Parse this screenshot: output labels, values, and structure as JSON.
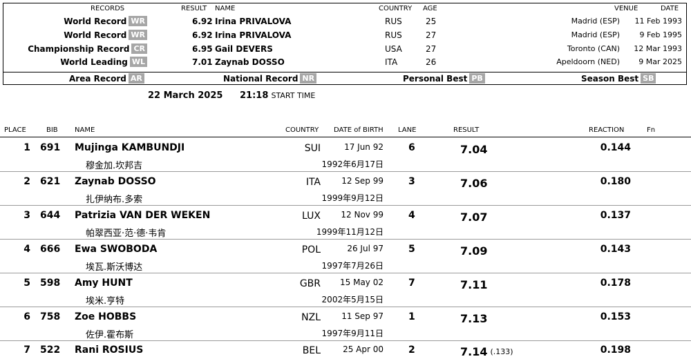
{
  "records": {
    "headers": {
      "records": "RECORDS",
      "result": "RESULT",
      "name": "NAME",
      "country": "COUNTRY",
      "age": "AGE",
      "venue": "VENUE",
      "date": "DATE"
    },
    "rows": [
      {
        "label": "World Record",
        "code": "WR",
        "result": "6.92",
        "name": "Irina PRIVALOVA",
        "country": "RUS",
        "age": "25",
        "venue": "Madrid (ESP)",
        "date": "11 Feb 1993"
      },
      {
        "label": "World Record",
        "code": "WR",
        "result": "6.92",
        "name": "Irina PRIVALOVA",
        "country": "RUS",
        "age": "27",
        "venue": "Madrid (ESP)",
        "date": "9 Feb 1995"
      },
      {
        "label": "Championship Record",
        "code": "CR",
        "result": "6.95",
        "name": "Gail DEVERS",
        "country": "USA",
        "age": "27",
        "venue": "Toronto (CAN)",
        "date": "12 Mar 1993"
      },
      {
        "label": "World Leading",
        "code": "WL",
        "result": "7.01",
        "name": "Zaynab DOSSO",
        "country": "ITA",
        "age": "26",
        "venue": "Apeldoorn (NED)",
        "date": "9 Mar 2025"
      }
    ],
    "legend": [
      {
        "label": "Area Record",
        "code": "AR"
      },
      {
        "label": "National Record",
        "code": "NR"
      },
      {
        "label": "Personal Best",
        "code": "PB"
      },
      {
        "label": "Season Best",
        "code": "SB"
      }
    ]
  },
  "event": {
    "date": "22 March  2025",
    "time": "21:18",
    "start_time_label": "START TIME"
  },
  "columns": {
    "place": "PLACE",
    "bib": "BIB",
    "name": "NAME",
    "country": "COUNTRY",
    "dob": "DATE of BIRTH",
    "lane": "LANE",
    "result": "RESULT",
    "reaction": "REACTION",
    "fn": "Fn"
  },
  "athletes": [
    {
      "place": "1",
      "bib": "691",
      "name": "Mujinga  KAMBUNDJI",
      "name_cn": "穆金加.坎邦吉",
      "country": "SUI",
      "dob": "17 Jun 92",
      "dob_cn": "1992年6月17日",
      "lane": "6",
      "result": "7.04",
      "result_note": "",
      "reaction": "0.144"
    },
    {
      "place": "2",
      "bib": "621",
      "name": "Zaynab  DOSSO",
      "name_cn": "扎伊纳布.多索",
      "country": "ITA",
      "dob": "12 Sep 99",
      "dob_cn": "1999年9月12日",
      "lane": "3",
      "result": "7.06",
      "result_note": "",
      "reaction": "0.180"
    },
    {
      "place": "3",
      "bib": "644",
      "name": "Patrizia  VAN DER WEKEN",
      "name_cn": "帕翠西亚·范·德·韦肯",
      "country": "LUX",
      "dob": "12 Nov 99",
      "dob_cn": "1999年11月12日",
      "lane": "4",
      "result": "7.07",
      "result_note": "",
      "reaction": "0.137"
    },
    {
      "place": "4",
      "bib": "666",
      "name": "Ewa  SWOBODA",
      "name_cn": "埃瓦.斯沃博达",
      "country": "POL",
      "dob": "26 Jul 97",
      "dob_cn": "1997年7月26日",
      "lane": "5",
      "result": "7.09",
      "result_note": "",
      "reaction": "0.143"
    },
    {
      "place": "5",
      "bib": "598",
      "name": "Amy  HUNT",
      "name_cn": "埃米.亨特",
      "country": "GBR",
      "dob": "15 May 02",
      "dob_cn": "2002年5月15日",
      "lane": "7",
      "result": "7.11",
      "result_note": "",
      "reaction": "0.178"
    },
    {
      "place": "6",
      "bib": "758",
      "name": "Zoe  HOBBS",
      "name_cn": "佐伊.霍布斯",
      "country": "NZL",
      "dob": "11 Sep 97",
      "dob_cn": "1997年9月11日",
      "lane": "1",
      "result": "7.13",
      "result_note": "",
      "reaction": "0.153"
    },
    {
      "place": "7",
      "bib": "522",
      "name": "Rani  ROSIUS",
      "name_cn": "",
      "country": "BEL",
      "dob": "25 Apr 00",
      "dob_cn": "",
      "lane": "2",
      "result": "7.14",
      "result_note": "(.133)",
      "reaction": "0.198"
    }
  ]
}
